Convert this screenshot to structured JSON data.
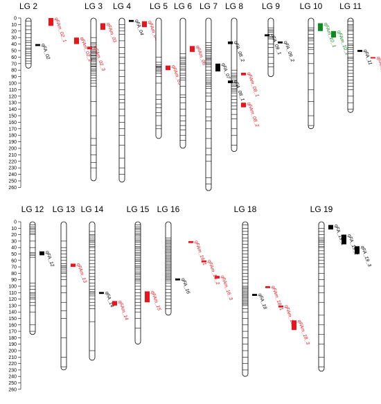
{
  "colors": {
    "red": "#e8151c",
    "green": "#0e8a1e",
    "black": "#000000"
  },
  "axis_ticks": [
    "0",
    "10",
    "20",
    "30",
    "40",
    "50",
    "60",
    "70",
    "80",
    "90",
    "100",
    "110",
    "120",
    "130",
    "140",
    "150",
    "160",
    "170",
    "180",
    "190",
    "200",
    "210",
    "220",
    "230",
    "240",
    "250",
    "260"
  ],
  "panels": [
    {
      "id": "top",
      "groups": [
        {
          "label": "LG 2",
          "length": 77,
          "markers": [
            5,
            12,
            18,
            24,
            30,
            35,
            38,
            42,
            46,
            48,
            52,
            55,
            58,
            62,
            66,
            70
          ],
          "qtls": [
            {
              "name": "qFAm_02_1",
              "color": "red",
              "start": 0,
              "end": 12,
              "col": 1
            },
            {
              "name": "qFA_02",
              "color": "black",
              "start": 40,
              "end": 43,
              "col": 0
            }
          ]
        },
        {
          "label": "LG 3",
          "length": 250,
          "markers": [
            30,
            38,
            40,
            43,
            45,
            48,
            50,
            52,
            53,
            55,
            57,
            58,
            60,
            62,
            63,
            65,
            67,
            70,
            72,
            74,
            75,
            78,
            80,
            82,
            85,
            88,
            92,
            96,
            100,
            105,
            128,
            150,
            185,
            195,
            210,
            222,
            230
          ],
          "qtls": [
            {
              "name": "qFAm_02_2",
              "color": "red",
              "start": 30,
              "end": 40,
              "col": -2
            },
            {
              "name": "qFAm_02_3",
              "color": "red",
              "start": 44,
              "end": 48,
              "col": -1
            },
            {
              "name": "qFAm_03",
              "color": "red",
              "start": 8,
              "end": 18,
              "col": 0
            }
          ]
        },
        {
          "label": "LG 4",
          "length": 252,
          "markers": [
            10,
            15,
            20,
            25,
            35,
            45,
            55,
            60,
            70,
            80,
            90,
            100,
            110,
            118,
            125,
            130,
            140,
            150,
            160,
            170,
            180,
            195,
            215,
            230,
            240
          ],
          "qtls": [
            {
              "name": "qFA_04",
              "color": "black",
              "start": 3,
              "end": 6,
              "col": 0
            },
            {
              "name": "qFAm_04",
              "color": "red",
              "start": 5,
              "end": 14,
              "col": 1
            }
          ]
        },
        {
          "label": "LG 5",
          "length": 185,
          "markers": [
            60,
            68,
            72,
            74,
            75,
            76,
            78,
            80,
            82,
            85,
            90,
            100,
            118,
            125,
            132,
            138,
            145,
            150,
            165,
            170
          ],
          "qtls": [
            {
              "name": "qFAm_05",
              "color": "red",
              "start": 73,
              "end": 80,
              "col": 0
            }
          ]
        },
        {
          "label": "LG 6",
          "length": 200,
          "markers": [
            55,
            60,
            62,
            65,
            68,
            70,
            72,
            75,
            78,
            80,
            85,
            88,
            92,
            95,
            105,
            118,
            122,
            130,
            140,
            150,
            158,
            165,
            172,
            180,
            188
          ],
          "qtls": [
            {
              "name": "qFAm_06",
              "color": "red",
              "start": 43,
              "end": 52,
              "col": 0
            }
          ]
        },
        {
          "label": "LG 7",
          "length": 265,
          "markers": [
            38,
            42,
            45,
            48,
            50,
            52,
            55,
            58,
            60,
            62,
            63,
            65,
            68,
            70,
            72,
            75,
            80,
            85,
            88,
            92,
            95,
            98,
            100,
            102,
            105,
            108,
            115,
            120,
            128,
            140,
            152,
            158,
            170,
            185,
            200,
            210,
            220,
            245,
            255
          ],
          "qtls": [
            {
              "name": "qFA_07",
              "color": "black",
              "start": 70,
              "end": 82,
              "col": 0
            }
          ]
        },
        {
          "label": "LG 8",
          "length": 205,
          "markers": [
            80,
            85,
            88,
            90,
            92,
            95,
            98,
            100,
            103,
            105,
            108,
            110,
            112,
            115,
            120,
            125,
            130,
            135,
            140,
            148,
            155,
            170,
            180,
            195
          ],
          "qtls": [
            {
              "name": "qFA_08_2",
              "color": "black",
              "start": 36,
              "end": 40,
              "col": -1
            },
            {
              "name": "qFAm_08_1",
              "color": "red",
              "start": 84,
              "end": 88,
              "col": 0
            },
            {
              "name": "qFA_08_1",
              "color": "black",
              "start": 96,
              "end": 100,
              "col": -1
            },
            {
              "name": "qFAm_08_2",
              "color": "red",
              "start": 130,
              "end": 137,
              "col": 0
            }
          ]
        },
        {
          "label": "LG 9",
          "length": 90,
          "markers": [
            15,
            18,
            20,
            22,
            25,
            28,
            30,
            32,
            40,
            45,
            55,
            60,
            70,
            75
          ],
          "qtls": [
            {
              "name": "qFA_09_1",
              "color": "black",
              "start": 25,
              "end": 28,
              "col": -1
            },
            {
              "name": "qFA_09_2",
              "color": "black",
              "start": 36,
              "end": 39,
              "col": 0
            }
          ]
        },
        {
          "label": "LG 10",
          "length": 170,
          "markers": [
            15,
            18,
            20,
            25,
            30,
            32,
            35,
            40,
            45,
            48,
            55,
            70,
            85,
            110,
            128,
            150,
            165
          ],
          "qtls": [
            {
              "name": "qFAm_10_1",
              "color": "green",
              "start": 8,
              "end": 20,
              "col": 0
            },
            {
              "name": "qFAm_10_2",
              "color": "green",
              "start": 20,
              "end": 30,
              "col": 1
            }
          ]
        },
        {
          "label": "LG 11",
          "length": 145,
          "markers": [
            5,
            10,
            12,
            15,
            18,
            20,
            25,
            30,
            35,
            40,
            42,
            45,
            48,
            52,
            55,
            60,
            62,
            65,
            70,
            75,
            80,
            85,
            90,
            95,
            100,
            105,
            110,
            120,
            130,
            140
          ],
          "qtls": [
            {
              "name": "qFA_11",
              "color": "black",
              "start": 49,
              "end": 52,
              "col": 0
            },
            {
              "name": "qFAm_11",
              "color": "red",
              "start": 60,
              "end": 62,
              "col": 1
            }
          ]
        }
      ]
    },
    {
      "id": "bottom",
      "groups": [
        {
          "label": "LG 12",
          "length": 175,
          "markers": [
            5,
            8,
            10,
            12,
            15,
            18,
            20,
            30,
            40,
            48,
            50,
            52,
            55,
            95,
            100,
            105,
            110,
            112,
            115,
            118,
            120,
            125,
            130,
            140,
            160,
            170
          ],
          "qtls": [
            {
              "name": "qFA_12",
              "color": "black",
              "start": 46,
              "end": 52,
              "col": 0
            }
          ]
        },
        {
          "label": "LG 13",
          "length": 230,
          "markers": [
            30,
            40,
            45,
            50,
            55,
            60,
            65,
            68,
            70,
            72,
            75,
            78,
            80,
            85,
            90,
            100,
            110,
            125,
            138,
            150,
            180,
            210,
            225
          ],
          "qtls": [
            {
              "name": "qFAm_13",
              "color": "red",
              "start": 65,
              "end": 70,
              "col": 0
            }
          ]
        },
        {
          "label": "LG 14",
          "length": 215,
          "markers": [
            15,
            20,
            22,
            25,
            28,
            30,
            32,
            35,
            38,
            40,
            45,
            50,
            55,
            60,
            65,
            70,
            75,
            80,
            85,
            90,
            95,
            100,
            105,
            108,
            110,
            112,
            115,
            120,
            125,
            130,
            135,
            155,
            200
          ],
          "qtls": [
            {
              "name": "qFA_14",
              "color": "black",
              "start": 109,
              "end": 112,
              "col": 0
            },
            {
              "name": "qFAm_14",
              "color": "red",
              "start": 123,
              "end": 130,
              "col": 1
            }
          ]
        },
        {
          "label": "LG 15",
          "length": 190,
          "markers": [
            5,
            8,
            10,
            12,
            15,
            18,
            20,
            22,
            25,
            28,
            30,
            32,
            35,
            38,
            40,
            42,
            45,
            48,
            50,
            52,
            55,
            58,
            60,
            62,
            65,
            68,
            70,
            72,
            75,
            78,
            80,
            82,
            85,
            88,
            90,
            92,
            95,
            100,
            105,
            110,
            115,
            120,
            125,
            130,
            135,
            140,
            150,
            165
          ],
          "qtls": [
            {
              "name": "qFAm_15",
              "color": "red",
              "start": 108,
              "end": 125,
              "col": 0
            }
          ]
        },
        {
          "label": "LG 16",
          "length": 145,
          "markers": [
            25,
            28,
            30,
            32,
            34,
            36,
            38,
            40,
            42,
            44,
            46,
            48,
            50,
            52,
            54,
            56,
            58,
            60,
            62,
            64,
            66,
            68,
            70,
            72,
            74,
            76,
            78,
            80,
            82,
            84,
            86,
            88,
            90,
            92,
            95,
            100,
            105,
            110,
            115,
            120,
            125,
            130,
            135
          ],
          "qtls": [
            {
              "name": "qFA_16",
              "color": "black",
              "start": 88,
              "end": 91,
              "col": 0
            },
            {
              "name": "qFAm_16_1",
              "color": "red",
              "start": 30,
              "end": 33,
              "col": 1
            },
            {
              "name": "qFAm_16_2",
              "color": "red",
              "start": 60,
              "end": 63,
              "col": 2
            },
            {
              "name": "qFAm_16_3",
              "color": "red",
              "start": 84,
              "end": 88,
              "col": 3
            }
          ]
        },
        {
          "label": "LG 18",
          "length": 240,
          "markers": [
            5,
            10,
            15,
            20,
            25,
            30,
            35,
            40,
            45,
            50,
            55,
            60,
            65,
            70,
            75,
            80,
            85,
            90,
            95,
            100,
            102,
            104,
            106,
            108,
            110,
            112,
            114,
            116,
            118,
            120,
            122,
            124,
            126,
            128,
            130,
            135,
            140,
            150,
            160,
            170,
            180,
            190,
            200,
            210,
            220,
            230
          ],
          "qtls": [
            {
              "name": "qFA_18",
              "color": "black",
              "start": 112,
              "end": 115,
              "col": 0
            },
            {
              "name": "qFAm_18_1",
              "color": "red",
              "start": 100,
              "end": 103,
              "col": 1
            },
            {
              "name": "qFAm_18_2",
              "color": "red",
              "start": 130,
              "end": 133,
              "col": 2
            },
            {
              "name": "qFAm_18_3",
              "color": "red",
              "start": 153,
              "end": 168,
              "col": 3
            }
          ]
        },
        {
          "label": "LG 19",
          "length": 232,
          "markers": [
            10,
            15,
            20,
            25,
            28,
            30,
            32,
            35,
            38,
            40,
            45,
            50,
            55,
            60,
            65,
            70,
            80,
            90,
            100,
            110,
            125,
            145,
            160,
            175,
            190,
            210,
            225
          ],
          "qtls": [
            {
              "name": "qFA_19_1",
              "color": "black",
              "start": 5,
              "end": 12,
              "col": 0
            },
            {
              "name": "qFA_19_2",
              "color": "black",
              "start": 20,
              "end": 35,
              "col": 1
            },
            {
              "name": "qFA_19_3",
              "color": "black",
              "start": 38,
              "end": 50,
              "col": 2
            }
          ]
        }
      ]
    }
  ]
}
